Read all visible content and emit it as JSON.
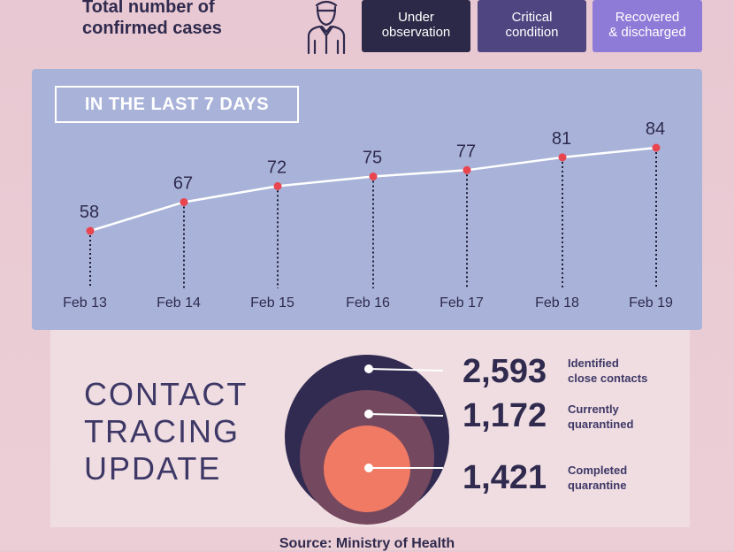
{
  "header": {
    "title_line1": "Total number of",
    "title_line2": "confirmed cases",
    "legend": [
      {
        "line1": "Under",
        "line2": "observation",
        "color": "#2c2847"
      },
      {
        "line1": "Critical",
        "line2": "condition",
        "color": "#4f4581"
      },
      {
        "line1": "Recovered",
        "line2": "& discharged",
        "color": "#8e7bd8"
      }
    ]
  },
  "chart_data": {
    "type": "line",
    "title": "IN THE LAST 7 DAYS",
    "categories": [
      "Feb 13",
      "Feb 14",
      "Feb 15",
      "Feb 16",
      "Feb 17",
      "Feb 18",
      "Feb 19"
    ],
    "values": [
      58,
      67,
      72,
      75,
      77,
      81,
      84
    ],
    "line_color": "#ffffff",
    "point_color": "#e8454f",
    "background": "#a9b3d9"
  },
  "contact_tracing": {
    "title_lines": [
      "CONTACT",
      "TRACING",
      "UPDATE"
    ],
    "items": [
      {
        "value": "2,593",
        "label_line1": "Identified",
        "label_line2": "close contacts",
        "color": "#312b52"
      },
      {
        "value": "1,172",
        "label_line1": "Currently",
        "label_line2": "quarantined",
        "color": "#74485e"
      },
      {
        "value": "1,421",
        "label_line1": "Completed",
        "label_line2": "quarantine",
        "color": "#f07a63"
      }
    ]
  },
  "footer": {
    "source": "Source: Ministry of Health"
  }
}
